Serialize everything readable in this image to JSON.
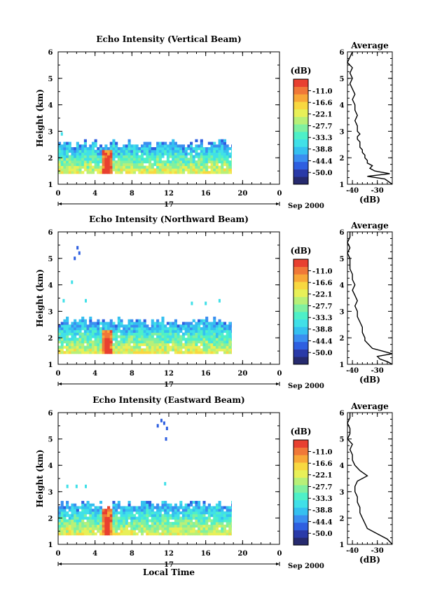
{
  "chart_data": [
    {
      "type": "heatmap",
      "title": "Echo Intensity (Vertical Beam)",
      "xlabel": "",
      "ylabel": "Height (km)",
      "xlim": [
        0,
        24
      ],
      "ylim": [
        1,
        6
      ],
      "x_ticks": [
        "0",
        "4",
        "8",
        "12",
        "16",
        "20",
        "0"
      ],
      "y_ticks": [
        "1",
        "2",
        "3",
        "4",
        "5",
        "6"
      ],
      "date_label": "17",
      "month_label": "Sep 2000",
      "colorbar": {
        "unit": "(dB)",
        "ticks": [
          "-11.0",
          "-16.6",
          "-22.1",
          "-27.7",
          "-33.3",
          "-38.8",
          "-44.4",
          "-50.0"
        ],
        "range": [
          -55.6,
          -5.5
        ]
      },
      "echo_layer": {
        "time_range": [
          0,
          18.8
        ],
        "base_km": 1.4,
        "top_km": 2.5,
        "peak_time": 5.2,
        "peak_top_km": 2.3,
        "peak_db": -11
      },
      "scattered_echoes": [
        {
          "time": 0.4,
          "height": 2.9
        }
      ],
      "average_profile": {
        "title": "Average",
        "xlabel": "(dB)",
        "x_ticks": [
          "-40",
          "-30"
        ],
        "xlim": [
          -42,
          -24
        ],
        "ylim": [
          1,
          6
        ],
        "height": [
          1.0,
          1.2,
          1.3,
          1.4,
          1.5,
          1.6,
          1.7,
          1.8,
          1.9,
          2.0,
          2.1,
          2.2,
          2.3,
          2.4,
          2.5,
          2.6,
          2.7,
          2.8,
          2.9,
          3.0,
          3.2,
          3.4,
          3.6,
          3.8,
          4.0,
          4.2,
          4.4,
          4.6,
          4.8,
          5.0,
          5.2,
          5.4,
          5.6,
          5.8,
          6.0
        ],
        "db": [
          -24,
          -27,
          -34,
          -25,
          -31,
          -33,
          -32,
          -34,
          -34,
          -35,
          -35,
          -36,
          -36,
          -37,
          -37,
          -37,
          -38,
          -38,
          -37,
          -38,
          -38,
          -39,
          -38,
          -39,
          -39,
          -40,
          -39,
          -40,
          -41,
          -40,
          -41,
          -40,
          -42,
          -41,
          -40
        ]
      }
    },
    {
      "type": "heatmap",
      "title": "Echo Intensity (Northward Beam)",
      "xlabel": "",
      "ylabel": "Height (km)",
      "xlim": [
        0,
        24
      ],
      "ylim": [
        1,
        6
      ],
      "x_ticks": [
        "0",
        "4",
        "8",
        "12",
        "16",
        "20",
        "0"
      ],
      "y_ticks": [
        "1",
        "2",
        "3",
        "4",
        "5",
        "6"
      ],
      "date_label": "17",
      "month_label": "Sep 2000",
      "colorbar": {
        "unit": "(dB)",
        "ticks": [
          "-11.0",
          "-16.6",
          "-22.1",
          "-27.7",
          "-33.3",
          "-38.8",
          "-44.4",
          "-50.0"
        ],
        "range": [
          -55.6,
          -5.5
        ]
      },
      "echo_layer": {
        "time_range": [
          0,
          18.8
        ],
        "base_km": 1.4,
        "top_km": 2.6,
        "peak_time": 5.2,
        "peak_top_km": 2.3,
        "peak_db": -11
      },
      "scattered_echoes": [
        {
          "time": 1.8,
          "height": 5.0
        },
        {
          "time": 2.1,
          "height": 5.4
        },
        {
          "time": 2.3,
          "height": 5.2
        },
        {
          "time": 1.5,
          "height": 4.1
        },
        {
          "time": 0.6,
          "height": 3.4
        },
        {
          "time": 3.0,
          "height": 3.4
        },
        {
          "time": 14.5,
          "height": 3.3
        },
        {
          "time": 16.0,
          "height": 3.3
        },
        {
          "time": 17.5,
          "height": 3.4
        }
      ],
      "average_profile": {
        "title": "Average",
        "xlabel": "(dB)",
        "x_ticks": [
          "-40",
          "-30"
        ],
        "xlim": [
          -42,
          -24
        ],
        "ylim": [
          1,
          6
        ],
        "height": [
          1.0,
          1.1,
          1.2,
          1.3,
          1.4,
          1.5,
          1.6,
          1.7,
          1.8,
          1.9,
          2.0,
          2.2,
          2.4,
          2.6,
          2.8,
          3.0,
          3.2,
          3.4,
          3.6,
          3.8,
          4.0,
          4.2,
          4.4,
          4.6,
          4.8,
          5.0,
          5.2,
          5.4,
          5.6,
          5.8,
          6.0
        ],
        "db": [
          -24,
          -26,
          -29,
          -30,
          -24,
          -28,
          -32,
          -33,
          -34,
          -35,
          -35,
          -36,
          -36,
          -37,
          -38,
          -38,
          -39,
          -38,
          -39,
          -40,
          -39,
          -40,
          -40,
          -41,
          -41,
          -41,
          -42,
          -41,
          -42,
          -41,
          -41
        ]
      }
    },
    {
      "type": "heatmap",
      "title": "Echo Intensity (Eastward Beam)",
      "xlabel": "Local Time",
      "ylabel": "Height (km)",
      "xlim": [
        0,
        24
      ],
      "ylim": [
        1,
        6
      ],
      "x_ticks": [
        "0",
        "4",
        "8",
        "12",
        "16",
        "20",
        "0"
      ],
      "y_ticks": [
        "1",
        "2",
        "3",
        "4",
        "5",
        "6"
      ],
      "date_label": "17",
      "month_label": "Sep 2000",
      "colorbar": {
        "unit": "(dB)",
        "ticks": [
          "-11.0",
          "-16.6",
          "-22.1",
          "-27.7",
          "-33.3",
          "-38.8",
          "-44.4",
          "-50.0"
        ],
        "range": [
          -55.6,
          -5.5
        ]
      },
      "echo_layer": {
        "time_range": [
          0,
          18.8
        ],
        "base_km": 1.35,
        "top_km": 2.5,
        "peak_time": 5.2,
        "peak_top_km": 2.4,
        "peak_db": -11
      },
      "scattered_echoes": [
        {
          "time": 1.0,
          "height": 3.2
        },
        {
          "time": 2.0,
          "height": 3.2
        },
        {
          "time": 3.0,
          "height": 3.2
        },
        {
          "time": 11.6,
          "height": 3.3
        },
        {
          "time": 10.8,
          "height": 5.5
        },
        {
          "time": 11.5,
          "height": 5.6
        },
        {
          "time": 11.8,
          "height": 5.4
        },
        {
          "time": 11.7,
          "height": 5.0
        },
        {
          "time": 11.2,
          "height": 5.7
        }
      ],
      "average_profile": {
        "title": "Average",
        "xlabel": "(dB)",
        "x_ticks": [
          "-40",
          "-30"
        ],
        "xlim": [
          -42,
          -24
        ],
        "ylim": [
          1,
          6
        ],
        "height": [
          1.0,
          1.2,
          1.4,
          1.6,
          1.8,
          2.0,
          2.2,
          2.4,
          2.6,
          2.8,
          3.0,
          3.2,
          3.4,
          3.6,
          3.8,
          4.0,
          4.2,
          4.4,
          4.6,
          4.8,
          5.0,
          5.2,
          5.4,
          5.6,
          5.8,
          6.0
        ],
        "db": [
          -24,
          -26,
          -30,
          -34,
          -35,
          -36,
          -37,
          -37,
          -38,
          -38,
          -39,
          -39,
          -38,
          -34,
          -37,
          -39,
          -40,
          -40,
          -41,
          -40,
          -42,
          -41,
          -41,
          -42,
          -41,
          -41
        ]
      }
    }
  ]
}
